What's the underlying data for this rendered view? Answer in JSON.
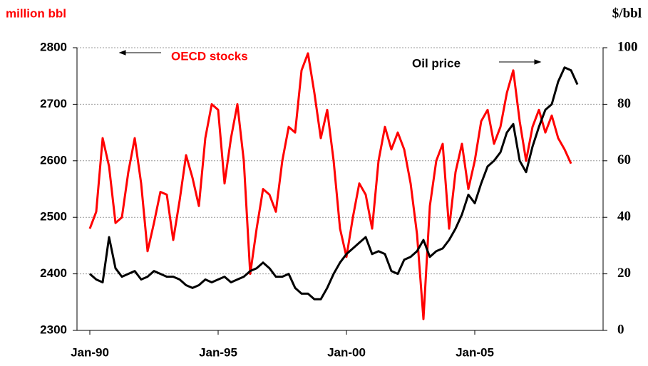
{
  "chart_data": {
    "type": "line",
    "y_axis_label": "million bbl",
    "y2_axis_label": "$/bbl",
    "annotations": [
      "OECD stocks",
      "Oil price"
    ],
    "xlim": [
      1989.5,
      2010
    ],
    "xticks": [
      {
        "value": 1990,
        "label": "Jan-90"
      },
      {
        "value": 1995,
        "label": "Jan-95"
      },
      {
        "value": 2000,
        "label": "Jan-00"
      },
      {
        "value": 2005,
        "label": "Jan-05"
      }
    ],
    "ylim": [
      2300,
      2800
    ],
    "yticks": [
      2300,
      2400,
      2500,
      2600,
      2700,
      2800
    ],
    "y2lim": [
      0,
      100
    ],
    "y2ticks": [
      0,
      20,
      40,
      60,
      80,
      100
    ],
    "grid": true,
    "series": [
      {
        "name": "OECD stocks",
        "color": "#ff0000",
        "axis": "y",
        "x": [
          1990,
          1990.25,
          1990.5,
          1990.75,
          1991,
          1991.25,
          1991.5,
          1991.75,
          1992,
          1992.25,
          1992.5,
          1992.75,
          1993,
          1993.25,
          1993.5,
          1993.75,
          1994,
          1994.25,
          1994.5,
          1994.75,
          1995,
          1995.25,
          1995.5,
          1995.75,
          1996,
          1996.25,
          1996.5,
          1996.75,
          1997,
          1997.25,
          1997.5,
          1997.75,
          1998,
          1998.25,
          1998.5,
          1998.75,
          1999,
          1999.25,
          1999.5,
          1999.75,
          2000,
          2000.25,
          2000.5,
          2000.75,
          2001,
          2001.25,
          2001.5,
          2001.75,
          2002,
          2002.25,
          2002.5,
          2002.75,
          2003,
          2003.25,
          2003.5,
          2003.75,
          2004,
          2004.25,
          2004.5,
          2004.75,
          2005,
          2005.25,
          2005.5,
          2005.75,
          2006,
          2006.25,
          2006.5,
          2006.75,
          2007,
          2007.25,
          2007.5,
          2007.75,
          2008,
          2008.25,
          2008.5,
          2008.75
        ],
        "values": [
          2480,
          2510,
          2640,
          2590,
          2490,
          2500,
          2580,
          2640,
          2560,
          2440,
          2490,
          2545,
          2540,
          2460,
          2530,
          2610,
          2570,
          2520,
          2640,
          2700,
          2690,
          2560,
          2640,
          2700,
          2600,
          2400,
          2480,
          2550,
          2540,
          2510,
          2600,
          2660,
          2650,
          2760,
          2790,
          2720,
          2640,
          2690,
          2600,
          2480,
          2430,
          2500,
          2560,
          2540,
          2480,
          2600,
          2660,
          2620,
          2650,
          2620,
          2560,
          2470,
          2320,
          2520,
          2600,
          2630,
          2480,
          2580,
          2630,
          2550,
          2600,
          2670,
          2690,
          2630,
          2660,
          2720,
          2760,
          2670,
          2600,
          2660,
          2690,
          2650,
          2680,
          2640,
          2620,
          2595
        ]
      },
      {
        "name": "Oil price",
        "color": "#000000",
        "axis": "y2",
        "x": [
          1990,
          1990.25,
          1990.5,
          1990.75,
          1991,
          1991.25,
          1991.5,
          1991.75,
          1992,
          1992.25,
          1992.5,
          1992.75,
          1993,
          1993.25,
          1993.5,
          1993.75,
          1994,
          1994.25,
          1994.5,
          1994.75,
          1995,
          1995.25,
          1995.5,
          1995.75,
          1996,
          1996.25,
          1996.5,
          1996.75,
          1997,
          1997.25,
          1997.5,
          1997.75,
          1998,
          1998.25,
          1998.5,
          1998.75,
          1999,
          1999.25,
          1999.5,
          1999.75,
          2000,
          2000.25,
          2000.5,
          2000.75,
          2001,
          2001.25,
          2001.5,
          2001.75,
          2002,
          2002.25,
          2002.5,
          2002.75,
          2003,
          2003.25,
          2003.5,
          2003.75,
          2004,
          2004.25,
          2004.5,
          2004.75,
          2005,
          2005.25,
          2005.5,
          2005.75,
          2006,
          2006.25,
          2006.5,
          2006.75,
          2007,
          2007.25,
          2007.5,
          2007.75,
          2008,
          2008.25,
          2008.5,
          2008.75,
          2009
        ],
        "values": [
          20,
          18,
          17,
          33,
          22,
          19,
          20,
          21,
          18,
          19,
          21,
          20,
          19,
          19,
          18,
          16,
          15,
          16,
          18,
          17,
          18,
          19,
          17,
          18,
          19,
          21,
          22,
          24,
          22,
          19,
          19,
          20,
          15,
          13,
          13,
          11,
          11,
          15,
          20,
          24,
          27,
          29,
          31,
          33,
          27,
          28,
          27,
          21,
          20,
          25,
          26,
          28,
          32,
          26,
          28,
          29,
          32,
          36,
          41,
          48,
          45,
          52,
          58,
          60,
          63,
          70,
          73,
          60,
          56,
          65,
          72,
          78,
          80,
          88,
          93,
          92,
          87
        ]
      }
    ]
  }
}
